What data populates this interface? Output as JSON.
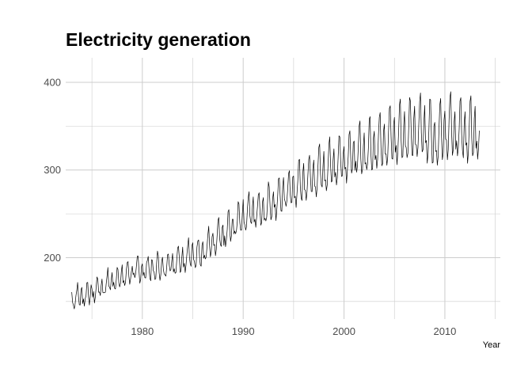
{
  "chart_data": {
    "type": "line",
    "title": "Electricity generation",
    "xlabel": "Year",
    "ylabel": "",
    "x_ticks": [
      1980,
      1990,
      2000,
      2010
    ],
    "y_ticks": [
      200,
      300,
      400
    ],
    "xlim": [
      1972.4,
      2015.5
    ],
    "ylim": [
      130,
      428
    ],
    "grid": true,
    "legend": "none",
    "series": [
      {
        "frequency": "monthly",
        "start_year": 1973,
        "start_month": 1,
        "end_year": 2013,
        "end_month": 6,
        "trend": [
          [
            1973,
            151
          ],
          [
            1975,
            158
          ],
          [
            1977,
            171
          ],
          [
            1979,
            181
          ],
          [
            1980,
            184
          ],
          [
            1982,
            186
          ],
          [
            1984,
            197
          ],
          [
            1986,
            204
          ],
          [
            1988,
            222
          ],
          [
            1989,
            232
          ],
          [
            1990,
            245
          ],
          [
            1992,
            252
          ],
          [
            1994,
            268
          ],
          [
            1996,
            282
          ],
          [
            1998,
            295
          ],
          [
            2000,
            308
          ],
          [
            2002,
            315
          ],
          [
            2004,
            328
          ],
          [
            2006,
            334
          ],
          [
            2007,
            340
          ],
          [
            2008,
            338
          ],
          [
            2009,
            326
          ],
          [
            2010,
            340
          ],
          [
            2011,
            338
          ],
          [
            2013,
            336
          ]
        ],
        "seasonal_amplitude": [
          [
            1973,
            14
          ],
          [
            1980,
            17
          ],
          [
            1990,
            24
          ],
          [
            2000,
            34
          ],
          [
            2005,
            42
          ],
          [
            2010,
            46
          ],
          [
            2013,
            46
          ]
        ],
        "seasonal_profile": [
          0.7,
          -0.2,
          -0.15,
          -0.55,
          -0.3,
          0.3,
          1.0,
          1.05,
          0.1,
          -0.45,
          -0.4,
          0.45
        ]
      }
    ]
  }
}
